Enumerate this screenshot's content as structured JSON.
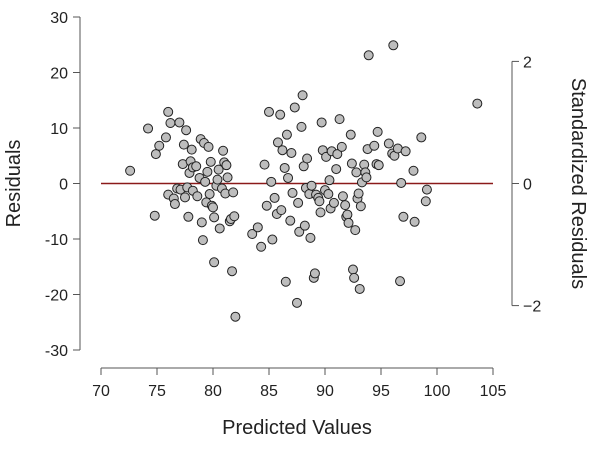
{
  "chart_data": {
    "type": "scatter",
    "title": "",
    "xlabel": "Predicted Values",
    "ylabel": "Residuals",
    "y2label": "Standardized Residuals",
    "xlim": [
      70,
      105
    ],
    "ylim": [
      -30,
      30
    ],
    "xticks": [
      "70",
      "75",
      "80",
      "85",
      "90",
      "95",
      "100",
      "105"
    ],
    "yticks": [
      "30",
      "20",
      "10",
      "0",
      "-10",
      "-20",
      "-30"
    ],
    "y2ticks": [
      "2",
      "0",
      "-2"
    ],
    "y2_tick_values": [
      2,
      0,
      -2
    ],
    "y2_scale": 11,
    "grid": false,
    "reference_line": {
      "y": 0,
      "color": "#8b1a1a"
    },
    "point_fill": "#bdbdbd",
    "point_stroke": "#222222",
    "points": [
      [
        72.6,
        2.3
      ],
      [
        74.2,
        9.9
      ],
      [
        74.8,
        -5.8
      ],
      [
        74.9,
        5.3
      ],
      [
        75.2,
        6.8
      ],
      [
        75.8,
        8.3
      ],
      [
        76.0,
        12.9
      ],
      [
        76.2,
        10.9
      ],
      [
        76.0,
        -2.0
      ],
      [
        76.5,
        -2.7
      ],
      [
        76.6,
        -3.7
      ],
      [
        76.8,
        -0.9
      ],
      [
        77.0,
        11.0
      ],
      [
        77.1,
        -1.1
      ],
      [
        77.3,
        3.5
      ],
      [
        77.4,
        7.0
      ],
      [
        77.5,
        -2.5
      ],
      [
        77.6,
        9.6
      ],
      [
        77.7,
        -0.7
      ],
      [
        77.8,
        -6.0
      ],
      [
        77.9,
        1.9
      ],
      [
        78.0,
        4.0
      ],
      [
        78.1,
        6.1
      ],
      [
        78.2,
        2.9
      ],
      [
        78.2,
        -1.3
      ],
      [
        78.5,
        3.1
      ],
      [
        78.6,
        -2.3
      ],
      [
        78.8,
        1.0
      ],
      [
        78.9,
        8.0
      ],
      [
        79.0,
        -7.0
      ],
      [
        79.1,
        -10.2
      ],
      [
        79.2,
        7.3
      ],
      [
        79.3,
        0.3
      ],
      [
        79.4,
        -3.4
      ],
      [
        79.5,
        2.1
      ],
      [
        79.6,
        6.6
      ],
      [
        79.7,
        -1.9
      ],
      [
        79.8,
        3.9
      ],
      [
        79.9,
        -4.0
      ],
      [
        80.0,
        -4.3
      ],
      [
        80.1,
        -6.1
      ],
      [
        80.1,
        -14.2
      ],
      [
        80.3,
        -0.4
      ],
      [
        80.4,
        0.7
      ],
      [
        80.5,
        2.5
      ],
      [
        80.6,
        -8.1
      ],
      [
        80.8,
        -0.9
      ],
      [
        80.9,
        5.9
      ],
      [
        81.0,
        3.8
      ],
      [
        81.1,
        -1.8
      ],
      [
        81.2,
        3.3
      ],
      [
        81.3,
        1.1
      ],
      [
        81.5,
        -6.8
      ],
      [
        81.6,
        -6.4
      ],
      [
        81.7,
        -15.8
      ],
      [
        81.8,
        -1.6
      ],
      [
        81.9,
        -5.9
      ],
      [
        82.0,
        -24.0
      ],
      [
        83.5,
        -9.1
      ],
      [
        84.0,
        -7.9
      ],
      [
        84.3,
        -11.4
      ],
      [
        84.6,
        3.4
      ],
      [
        84.8,
        -4.0
      ],
      [
        85.0,
        12.9
      ],
      [
        85.2,
        0.3
      ],
      [
        85.3,
        -10.1
      ],
      [
        85.5,
        -2.6
      ],
      [
        85.7,
        -5.5
      ],
      [
        85.8,
        7.4
      ],
      [
        86.0,
        12.4
      ],
      [
        86.1,
        -4.8
      ],
      [
        86.2,
        6.0
      ],
      [
        86.4,
        2.8
      ],
      [
        86.5,
        -17.7
      ],
      [
        86.6,
        8.8
      ],
      [
        86.7,
        1.0
      ],
      [
        86.9,
        -6.7
      ],
      [
        87.0,
        5.5
      ],
      [
        87.1,
        -1.7
      ],
      [
        87.3,
        13.7
      ],
      [
        87.5,
        -21.5
      ],
      [
        87.6,
        -3.5
      ],
      [
        87.7,
        -8.7
      ],
      [
        87.9,
        10.2
      ],
      [
        88.0,
        15.9
      ],
      [
        88.1,
        3.1
      ],
      [
        88.2,
        -7.6
      ],
      [
        88.3,
        -0.8
      ],
      [
        88.4,
        4.5
      ],
      [
        88.6,
        -1.9
      ],
      [
        88.7,
        -9.8
      ],
      [
        88.8,
        -0.4
      ],
      [
        89.0,
        -17.0
      ],
      [
        89.1,
        -16.2
      ],
      [
        89.2,
        -2.0
      ],
      [
        89.4,
        -2.6
      ],
      [
        89.5,
        -3.2
      ],
      [
        89.6,
        -5.2
      ],
      [
        89.7,
        11.0
      ],
      [
        89.8,
        6.0
      ],
      [
        90.0,
        -1.2
      ],
      [
        90.1,
        4.8
      ],
      [
        90.3,
        -1.9
      ],
      [
        90.4,
        0.6
      ],
      [
        90.5,
        -4.5
      ],
      [
        90.6,
        5.8
      ],
      [
        90.8,
        -3.5
      ],
      [
        91.0,
        2.6
      ],
      [
        91.1,
        5.3
      ],
      [
        91.3,
        11.6
      ],
      [
        91.5,
        6.6
      ],
      [
        91.6,
        -2.3
      ],
      [
        91.8,
        -3.9
      ],
      [
        91.9,
        -6.0
      ],
      [
        92.0,
        -5.6
      ],
      [
        92.1,
        -7.1
      ],
      [
        92.3,
        8.8
      ],
      [
        92.4,
        3.6
      ],
      [
        92.5,
        -15.5
      ],
      [
        92.6,
        -17.0
      ],
      [
        92.7,
        -8.4
      ],
      [
        92.8,
        2.0
      ],
      [
        92.9,
        -2.7
      ],
      [
        93.0,
        -1.8
      ],
      [
        93.1,
        -19.0
      ],
      [
        93.2,
        -4.1
      ],
      [
        93.3,
        0.2
      ],
      [
        93.5,
        3.4
      ],
      [
        93.6,
        2.0
      ],
      [
        93.7,
        1.1
      ],
      [
        93.8,
        6.2
      ],
      [
        93.9,
        23.1
      ],
      [
        94.4,
        6.8
      ],
      [
        94.6,
        3.5
      ],
      [
        94.7,
        9.3
      ],
      [
        94.8,
        3.3
      ],
      [
        95.7,
        7.2
      ],
      [
        96.0,
        5.4
      ],
      [
        96.1,
        24.9
      ],
      [
        96.2,
        5.0
      ],
      [
        96.5,
        6.3
      ],
      [
        96.7,
        -17.6
      ],
      [
        96.8,
        0.1
      ],
      [
        97.0,
        -6.0
      ],
      [
        97.2,
        5.8
      ],
      [
        97.9,
        2.3
      ],
      [
        98.0,
        -6.9
      ],
      [
        98.6,
        8.3
      ],
      [
        99.0,
        -3.2
      ],
      [
        99.1,
        -1.1
      ],
      [
        103.6,
        14.4
      ]
    ]
  }
}
